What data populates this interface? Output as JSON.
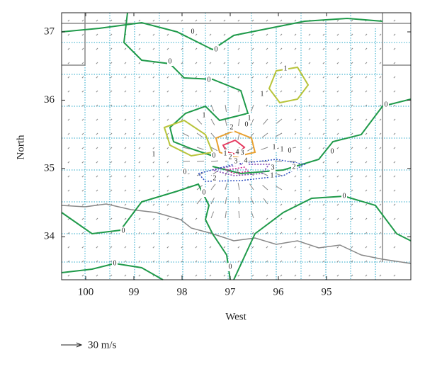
{
  "chart_data": {
    "type": "contour",
    "x_label": "West",
    "y_label": "North",
    "xlim": [
      100.5,
      93.25
    ],
    "xticks": [
      100,
      99,
      98,
      97,
      96,
      95
    ],
    "ylim": [
      33.37,
      37.28
    ],
    "yticks": [
      34,
      35,
      36,
      37
    ],
    "contour_labels": [
      0,
      0,
      0,
      1,
      1,
      0,
      1,
      1,
      0,
      2,
      1,
      0,
      1,
      4,
      3,
      4,
      3,
      2,
      1,
      0,
      0,
      3,
      1,
      2,
      2,
      0,
      0,
      0,
      0,
      0,
      0,
      0,
      1
    ],
    "scale_label": "30 m/s"
  }
}
